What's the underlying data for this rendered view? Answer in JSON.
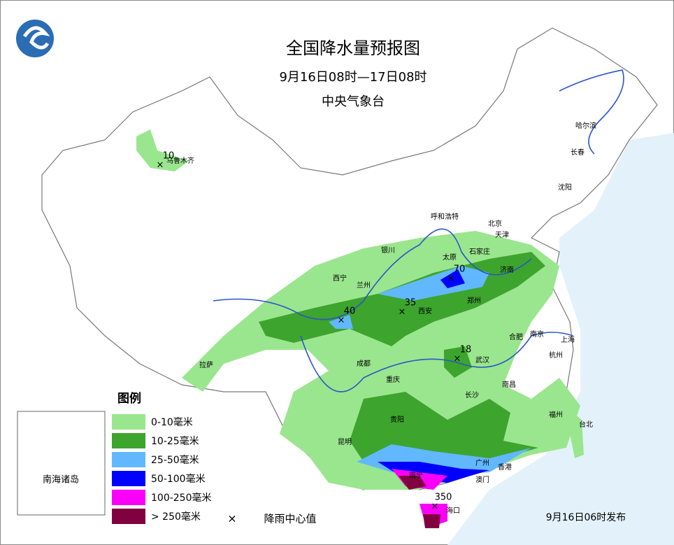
{
  "header": {
    "title": "全国降水量预报图",
    "period": "9月16日08时—17日08时",
    "issuer": "中央气象台"
  },
  "legend": {
    "title": "图例",
    "items": [
      {
        "label": "0-10毫米",
        "color": "#9ae68e"
      },
      {
        "label": "10-25毫米",
        "color": "#3da42d"
      },
      {
        "label": "25-50毫米",
        "color": "#61b8ff"
      },
      {
        "label": "50-100毫米",
        "color": "#0000fe"
      },
      {
        "label": "100-250毫米",
        "color": "#fa00fa"
      },
      {
        "label": "> 250毫米",
        "color": "#810040"
      }
    ],
    "marker_label": "降雨中心值"
  },
  "cities": [
    "乌鲁木齐",
    "哈尔滨",
    "长春",
    "沈阳",
    "呼和浩特",
    "北京",
    "天津",
    "银川",
    "太原",
    "石家庄",
    "济南",
    "西宁",
    "兰州",
    "郑州",
    "西安",
    "合肥",
    "南京",
    "上海",
    "武汉",
    "杭州",
    "成都",
    "拉萨",
    "重庆",
    "南昌",
    "长沙",
    "福州",
    "贵阳",
    "台北",
    "昆明",
    "南宁",
    "广州",
    "香港",
    "澳门",
    "海口"
  ],
  "centers": [
    10,
    70,
    35,
    40,
    18,
    350
  ],
  "inset_label": "南海诸岛",
  "footer": "9月16日06时发布"
}
